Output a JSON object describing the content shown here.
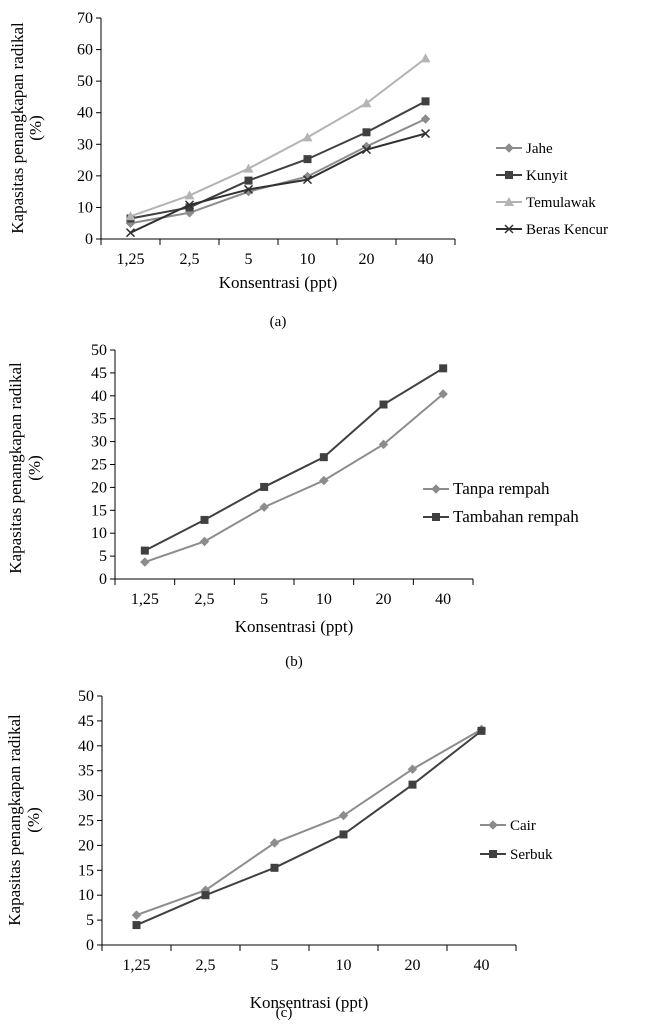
{
  "chart_data": [
    {
      "type": "line",
      "panel_label": "(a)",
      "xlabel": "Konsentrasi (ppt)",
      "ylabel_line1": "Kapasitas penangkapan radikal",
      "ylabel_line2": "(%)",
      "categories": [
        "1,25",
        "2,5",
        "5",
        "10",
        "20",
        "40"
      ],
      "ylim": [
        0,
        70
      ],
      "yticks": [
        0,
        10,
        20,
        30,
        40,
        50,
        60,
        70
      ],
      "grid": false,
      "legend_position": "right",
      "series": [
        {
          "name": "Jahe",
          "values": [
            5,
            8.3,
            15,
            19.8,
            29.3,
            38
          ],
          "color": "#8c8c8c",
          "marker": "diamond"
        },
        {
          "name": "Kunyit",
          "values": [
            6.5,
            10,
            18.5,
            25.3,
            33.8,
            43.6
          ],
          "color": "#404040",
          "marker": "square"
        },
        {
          "name": "Temulawak",
          "values": [
            7.2,
            13.8,
            22.3,
            32.2,
            43,
            57.2
          ],
          "color": "#b4b4b4",
          "marker": "triangle"
        },
        {
          "name": "Beras Kencur",
          "values": [
            2,
            10.8,
            15.7,
            18.8,
            28.3,
            33.4
          ],
          "color": "#303030",
          "marker": "x"
        }
      ]
    },
    {
      "type": "line",
      "panel_label": "(b)",
      "xlabel": "Konsentrasi (ppt)",
      "ylabel_line1": "Kapasitas penangkapan radikal",
      "ylabel_line2": "(%)",
      "categories": [
        "1,25",
        "2,5",
        "5",
        "10",
        "20",
        "40"
      ],
      "ylim": [
        0,
        50
      ],
      "yticks": [
        0,
        5,
        10,
        15,
        20,
        25,
        30,
        35,
        40,
        45,
        50
      ],
      "grid": false,
      "legend_position": "right",
      "series": [
        {
          "name": "Tanpa rempah",
          "values": [
            3.7,
            8.2,
            15.7,
            21.5,
            29.4,
            40.4
          ],
          "color": "#8c8c8c",
          "marker": "diamond"
        },
        {
          "name": "Tambahan rempah",
          "values": [
            6.2,
            12.9,
            20.1,
            26.6,
            38.1,
            46
          ],
          "color": "#404040",
          "marker": "square"
        }
      ]
    },
    {
      "type": "line",
      "panel_label": "(c)",
      "xlabel": "Konsentrasi (ppt)",
      "ylabel_line1": "Kapasitas penangkapan radikal",
      "ylabel_line2": "(%)",
      "categories": [
        "1,25",
        "2,5",
        "5",
        "10",
        "20",
        "40"
      ],
      "ylim": [
        0,
        50
      ],
      "yticks": [
        0,
        5,
        10,
        15,
        20,
        25,
        30,
        35,
        40,
        45,
        50
      ],
      "grid": false,
      "legend_position": "right",
      "series": [
        {
          "name": "Cair",
          "values": [
            6,
            11,
            20.5,
            26,
            35.3,
            43.3
          ],
          "color": "#8c8c8c",
          "marker": "diamond"
        },
        {
          "name": "Serbuk",
          "values": [
            4,
            10,
            15.5,
            22.2,
            32.2,
            43
          ],
          "color": "#404040",
          "marker": "square"
        }
      ]
    }
  ]
}
